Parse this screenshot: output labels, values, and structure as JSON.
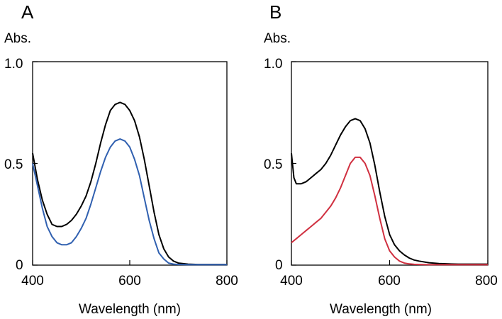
{
  "chart_data": [
    {
      "type": "line",
      "panel_label": "A",
      "ylabel": "Abs.",
      "xlabel": "Wavelength (nm)",
      "xlim": [
        400,
        800
      ],
      "ylim": [
        0,
        1.0
      ],
      "x_ticks": [
        400,
        600,
        800
      ],
      "y_ticks": [
        0,
        0.5,
        1.0
      ],
      "x_tick_labels": [
        "400",
        "600",
        "800"
      ],
      "y_tick_labels": [
        "0",
        "0.5",
        "1.0"
      ],
      "series": [
        {
          "name": "black",
          "color": "#000000",
          "x": [
            400,
            410,
            420,
            430,
            440,
            450,
            460,
            470,
            480,
            490,
            500,
            510,
            520,
            530,
            540,
            550,
            560,
            570,
            580,
            590,
            600,
            610,
            620,
            630,
            640,
            650,
            660,
            670,
            680,
            690,
            700,
            720,
            740,
            760,
            780,
            800
          ],
          "values": [
            0.55,
            0.42,
            0.32,
            0.25,
            0.2,
            0.19,
            0.19,
            0.2,
            0.22,
            0.25,
            0.29,
            0.34,
            0.41,
            0.5,
            0.6,
            0.69,
            0.76,
            0.79,
            0.8,
            0.79,
            0.76,
            0.71,
            0.63,
            0.52,
            0.39,
            0.26,
            0.15,
            0.08,
            0.04,
            0.02,
            0.01,
            0.005,
            0.003,
            0.003,
            0.003,
            0.003
          ]
        },
        {
          "name": "blue",
          "color": "#3060b0",
          "x": [
            400,
            410,
            420,
            430,
            440,
            450,
            460,
            470,
            480,
            490,
            500,
            510,
            520,
            530,
            540,
            550,
            560,
            570,
            580,
            590,
            600,
            610,
            620,
            630,
            640,
            650,
            660,
            670,
            680,
            690,
            700,
            720,
            740,
            760,
            780,
            800
          ],
          "values": [
            0.5,
            0.39,
            0.28,
            0.19,
            0.14,
            0.11,
            0.1,
            0.1,
            0.11,
            0.14,
            0.18,
            0.23,
            0.3,
            0.38,
            0.46,
            0.53,
            0.58,
            0.61,
            0.62,
            0.61,
            0.58,
            0.52,
            0.44,
            0.33,
            0.22,
            0.13,
            0.06,
            0.03,
            0.01,
            0.005,
            0.003,
            0.002,
            0.002,
            0.002,
            0.002,
            0.002
          ]
        }
      ]
    },
    {
      "type": "line",
      "panel_label": "B",
      "ylabel": "Abs.",
      "xlabel": "Wavelength (nm)",
      "xlim": [
        400,
        800
      ],
      "ylim": [
        0,
        1.0
      ],
      "x_ticks": [
        400,
        600,
        800
      ],
      "y_ticks": [
        0,
        0.5,
        1.0
      ],
      "x_tick_labels": [
        "400",
        "600",
        "800"
      ],
      "y_tick_labels": [
        "0",
        "0.5",
        "1.0"
      ],
      "series": [
        {
          "name": "black",
          "color": "#000000",
          "x": [
            400,
            405,
            410,
            420,
            430,
            440,
            450,
            460,
            470,
            480,
            490,
            500,
            510,
            520,
            530,
            540,
            550,
            560,
            570,
            580,
            590,
            600,
            610,
            620,
            630,
            640,
            650,
            660,
            680,
            700,
            720,
            740,
            760,
            780,
            800
          ],
          "values": [
            0.55,
            0.43,
            0.4,
            0.4,
            0.41,
            0.43,
            0.45,
            0.47,
            0.5,
            0.54,
            0.59,
            0.64,
            0.68,
            0.71,
            0.72,
            0.71,
            0.67,
            0.6,
            0.49,
            0.36,
            0.24,
            0.15,
            0.1,
            0.07,
            0.05,
            0.035,
            0.025,
            0.02,
            0.012,
            0.008,
            0.006,
            0.005,
            0.005,
            0.005,
            0.005
          ]
        },
        {
          "name": "red",
          "color": "#d03040",
          "x": [
            400,
            410,
            420,
            430,
            440,
            450,
            460,
            470,
            480,
            490,
            500,
            510,
            520,
            530,
            540,
            550,
            560,
            570,
            580,
            590,
            600,
            610,
            620,
            630,
            640,
            650,
            660,
            680,
            700,
            720,
            740,
            760,
            780,
            800
          ],
          "values": [
            0.11,
            0.13,
            0.15,
            0.17,
            0.19,
            0.21,
            0.23,
            0.26,
            0.29,
            0.33,
            0.38,
            0.44,
            0.5,
            0.53,
            0.53,
            0.5,
            0.44,
            0.34,
            0.23,
            0.13,
            0.07,
            0.04,
            0.02,
            0.01,
            0.006,
            0.004,
            0.003,
            0.002,
            0.002,
            0.002,
            0.002,
            0.002,
            0.002,
            0.002
          ]
        }
      ]
    }
  ]
}
